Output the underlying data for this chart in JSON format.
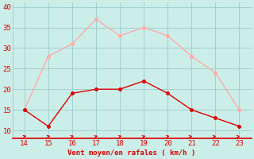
{
  "x": [
    14,
    15,
    16,
    17,
    18,
    19,
    20,
    21,
    22,
    23
  ],
  "y_wind_avg": [
    15,
    11,
    19,
    20,
    20,
    22,
    19,
    15,
    13,
    11
  ],
  "y_wind_gust": [
    15,
    28,
    31,
    37,
    33,
    35,
    33,
    28,
    24,
    15
  ],
  "color_avg": "#dd0000",
  "color_gust": "#ffaaaa",
  "background_color": "#cceee8",
  "grid_color": "#99cccc",
  "xlabel": "Vent moyen/en rafales ( km/h )",
  "xlabel_color": "#dd0000",
  "tick_color": "#dd0000",
  "ylim": [
    8,
    41
  ],
  "yticks": [
    10,
    15,
    20,
    25,
    30,
    35,
    40
  ],
  "xlim": [
    13.5,
    23.5
  ],
  "xticks": [
    14,
    15,
    16,
    17,
    18,
    19,
    20,
    21,
    22,
    23
  ],
  "arrow_angles_deg": [
    45,
    45,
    50,
    55,
    50,
    55,
    50,
    15,
    10,
    5
  ]
}
